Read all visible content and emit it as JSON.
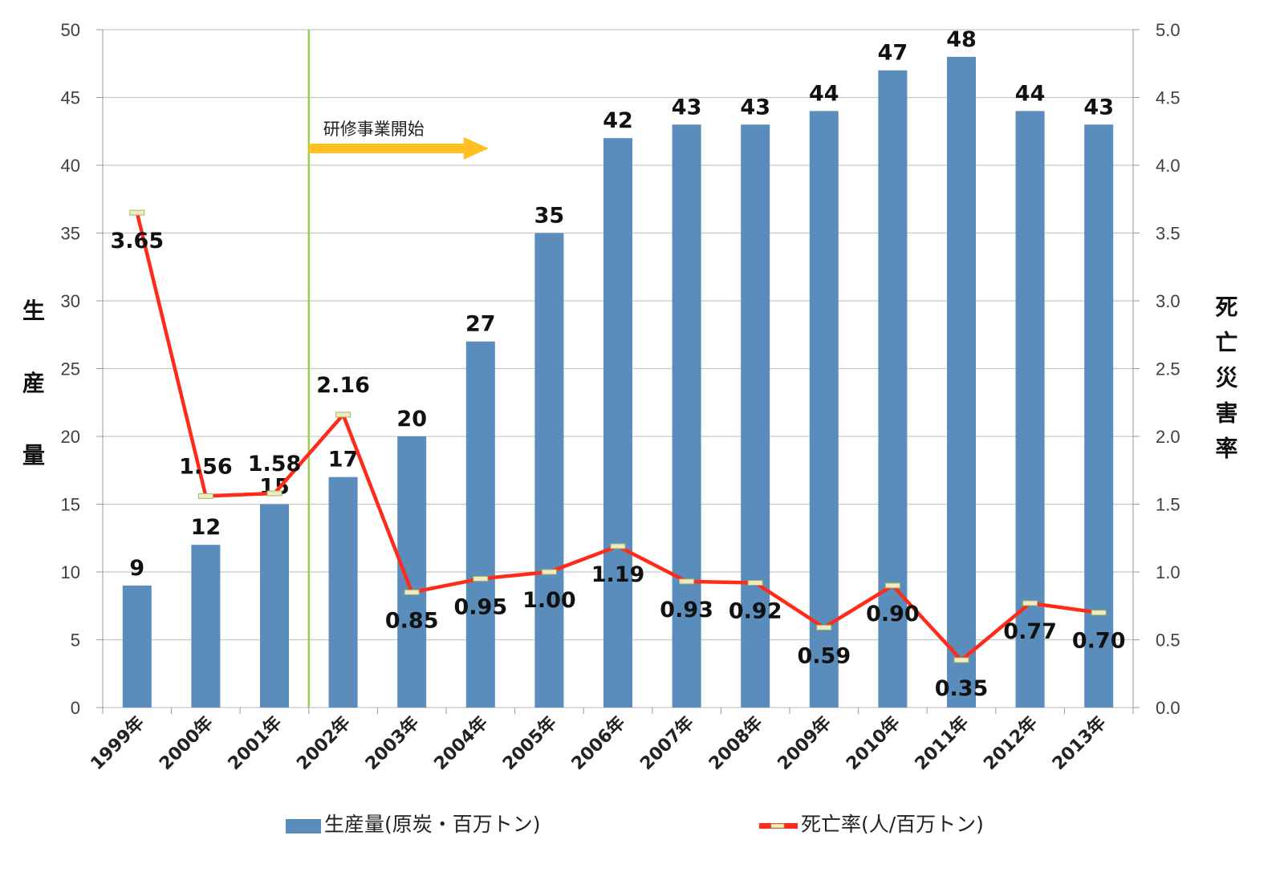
{
  "chart_data": {
    "type": "bar+line",
    "categories": [
      "1999年",
      "2000年",
      "2001年",
      "2002年",
      "2003年",
      "2004年",
      "2005年",
      "2006年",
      "2007年",
      "2008年",
      "2009年",
      "2010年",
      "2011年",
      "2012年",
      "2013年"
    ],
    "series": [
      {
        "name": "生産量(原炭・百万トン)",
        "type": "bar",
        "axis": "left",
        "color": "#5B8DBC",
        "values": [
          9,
          12,
          15,
          17,
          20,
          27,
          35,
          42,
          43,
          43,
          44,
          47,
          48,
          44,
          43
        ],
        "labels": [
          "9",
          "12",
          "15",
          "17",
          "20",
          "27",
          "35",
          "42",
          "43",
          "43",
          "44",
          "47",
          "48",
          "44",
          "43"
        ]
      },
      {
        "name": "死亡率(人/百万トン)",
        "type": "line",
        "axis": "right",
        "color": "#FF2A1A",
        "values": [
          3.65,
          1.56,
          1.58,
          2.16,
          0.85,
          0.95,
          1.0,
          1.19,
          0.93,
          0.92,
          0.59,
          0.9,
          0.35,
          0.77,
          0.7
        ],
        "labels": [
          "3.65",
          "1.56",
          "1.58",
          "2.16",
          "0.85",
          "0.95",
          "1.00",
          "1.19",
          "0.93",
          "0.92",
          "0.59",
          "0.90",
          "0.35",
          "0.77",
          "0.70"
        ],
        "label_side": [
          "below",
          "above",
          "above",
          "above",
          "below",
          "below",
          "below",
          "below",
          "below",
          "below",
          "below",
          "below",
          "below",
          "below",
          "below"
        ]
      }
    ],
    "y_left": {
      "label": "生産量",
      "range": [
        0,
        50
      ],
      "ticks": [
        "0",
        "5",
        "10",
        "15",
        "20",
        "25",
        "30",
        "35",
        "40",
        "45",
        "50"
      ]
    },
    "y_right": {
      "label": "死亡災害率",
      "range": [
        0,
        5
      ],
      "ticks": [
        "0.0",
        "0.5",
        "1.0",
        "1.5",
        "2.0",
        "2.5",
        "3.0",
        "3.5",
        "4.0",
        "4.5",
        "5.0"
      ]
    },
    "grid": true,
    "legend_position": "bottom",
    "annotation": {
      "text": "研修事業開始",
      "between": [
        "2001年",
        "2002年"
      ],
      "line_color": "#92D050",
      "arrow_color": "#FFC020"
    }
  }
}
